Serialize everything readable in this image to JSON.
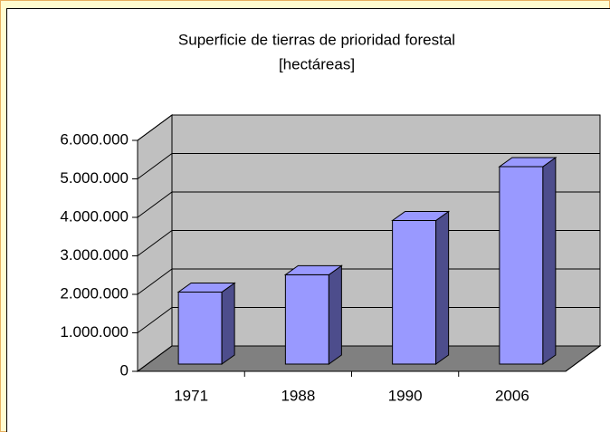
{
  "chart_data": {
    "type": "bar3d",
    "title": "Superficie de tierras de prioridad forestal",
    "subtitle": "[hectáreas]",
    "categories": [
      "1971",
      "1988",
      "1990",
      "2006"
    ],
    "values": [
      1870000,
      2320000,
      3730000,
      5130000
    ],
    "color": "#9999ff",
    "ylim": [
      0,
      6000000
    ],
    "yticks": [
      {
        "value": 0,
        "label": "0"
      },
      {
        "value": 1000000,
        "label": "1.000.000"
      },
      {
        "value": 2000000,
        "label": "2.000.000"
      },
      {
        "value": 3000000,
        "label": "3.000.000"
      },
      {
        "value": 4000000,
        "label": "4.000.000"
      },
      {
        "value": 5000000,
        "label": "5.000.000"
      },
      {
        "value": 6000000,
        "label": "6.000.000"
      }
    ],
    "grid": true
  }
}
